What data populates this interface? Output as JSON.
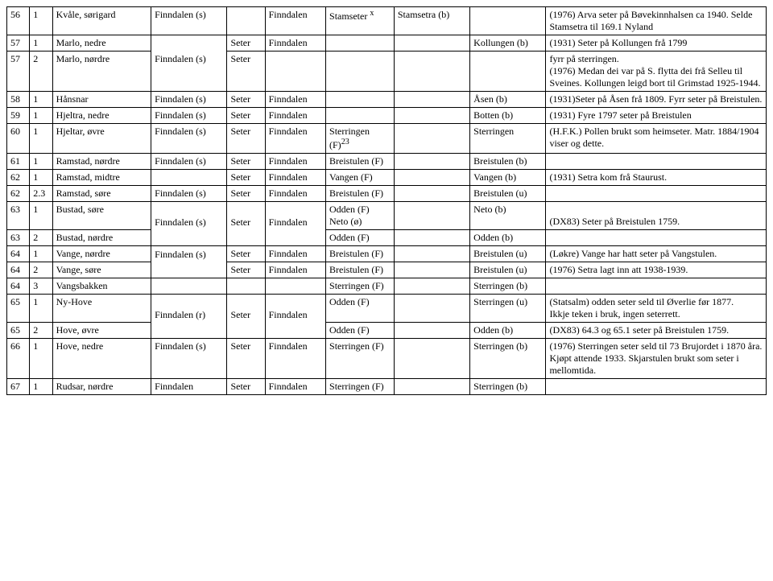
{
  "t": {
    "r56": {
      "a": "56",
      "b": "1",
      "c": "Kvåle, sørigard",
      "d": "Finndalen (s)",
      "f": "Finndalen",
      "g": "Stamsetra (b)",
      "i": "(1976) Arva seter på Bøvekinnhalsen ca 1940. Selde Stamsetra til 169.1 Nyland"
    },
    "stamseter": "Stamseter",
    "stamseter_sup": "x",
    "r57_1": {
      "a": "57",
      "b": "1",
      "c": "Marlo, nedre",
      "e": "Seter",
      "f": "Finndalen",
      "h": "Kollungen (b)",
      "i": "(1931) Seter på Kollungen frå 1799"
    },
    "r57_2": {
      "a": "57",
      "b": "2",
      "c": "Marlo, nørdre",
      "d": "Finndalen (s)",
      "e": "Seter",
      "i": "fyrr på sterringen.\n(1976)  Medan dei var på S. flytta dei frå Selleu til Sveines. Kollungen leigd bort til Grimstad 1925-1944."
    },
    "r58": {
      "a": "58",
      "b": "1",
      "c": "Hånsnar",
      "d": "Finndalen (s)",
      "e": "Seter",
      "f": "Finndalen",
      "h": "Åsen (b)",
      "i": "(1931)Seter på Åsen frå 1809. Fyrr seter på Breistulen."
    },
    "r59": {
      "a": "59",
      "b": "1",
      "c": "Hjeltra, nedre",
      "d": "Finndalen (s)",
      "e": "Seter",
      "f": "Finndalen",
      "h": "Botten (b)",
      "i": "(1931) Fyre 1797 seter på Breistulen"
    },
    "r60": {
      "a": "60",
      "b": "1",
      "c": "Hjeltar, øvre",
      "d": "Finndalen (s)",
      "e": "Seter",
      "f": "Finndalen",
      "h": "Sterringen",
      "i": "(H.F.K.) Pollen brukt som heimseter. Matr. 1884/1904 viser og dette."
    },
    "sterringen_f": "Sterringen (F)",
    "sup23": "23",
    "r61": {
      "a": "61",
      "b": "1",
      "c": "Ramstad, nørdre",
      "d": "Finndalen (s)",
      "e": "Seter",
      "f": "Finndalen",
      "g": "Breistulen (F)",
      "h": "Breistulen (b)"
    },
    "r62_1": {
      "a": "62",
      "b": "1",
      "c": "Ramstad, midtre",
      "e": "Seter",
      "f": "Finndalen",
      "g": "Vangen (F)",
      "h": "Vangen (b)",
      "i": "(1931) Setra kom frå Staurust."
    },
    "r62_2": {
      "a": "62",
      "b": "2.3",
      "c": "Ramstad, søre",
      "d": "Finndalen (s)",
      "e": "Seter",
      "f": "Finndalen",
      "g": "Breistulen (F)",
      "h": "Breistulen (u)"
    },
    "r63_1": {
      "a": "63",
      "b": "1",
      "c": "Bustad, søre",
      "d": "Finndalen (s)",
      "e": "Seter",
      "f": "Finndalen",
      "g": "Odden (F) Neto (ø)",
      "h": "Neto (b)",
      "i": "(DX83) Seter på Breistulen 1759."
    },
    "r63_2": {
      "a": "63",
      "b": "2",
      "c": "Bustad, nørdre",
      "g": "Odden (F)",
      "h": "Odden (b)"
    },
    "r64_1": {
      "a": "64",
      "b": "1",
      "c": "Vange, nørdre",
      "d": "Finndalen (s)",
      "e": "Seter",
      "f": "Finndalen",
      "g": "Breistulen (F)",
      "h": "Breistulen (u)",
      "i": "(Løkre) Vange har hatt seter på Vangstulen."
    },
    "r64_2": {
      "a": "64",
      "b": "2",
      "c": "Vange, søre",
      "e": "Seter",
      "f": "Finndalen",
      "g": "Breistulen (F)",
      "h": "Breistulen (u)",
      "i": "(1976) Setra lagt inn att 1938-1939."
    },
    "r64_3": {
      "a": "64",
      "b": "3",
      "c": "Vangsbakken",
      "g": "Sterringen (F)",
      "h": "Sterringen (b)"
    },
    "r65_1": {
      "a": "65",
      "b": "1",
      "c": "Ny-Hove",
      "d": "Finndalen (r)",
      "e": "Seter",
      "f": "Finndalen",
      "g": "Odden (F)",
      "h": "Sterringen (u)",
      "i": "(Statsalm) odden seter seld til Øverlie før 1877.\nIkkje teken i bruk, ingen seterrett."
    },
    "r65_2": {
      "a": "65",
      "b": "2",
      "c": "Hove, øvre",
      "g": "Odden (F)",
      "h": "Odden (b)",
      "i": "(DX83) 64.3 og 65.1 seter på Breistulen 1759."
    },
    "r66": {
      "a": "66",
      "b": "1",
      "c": "Hove, nedre",
      "d": "Finndalen (s)",
      "e": "Seter",
      "f": "Finndalen",
      "g": "Sterringen (F)",
      "h": "Sterringen (b)",
      "i": "(1976) Sterringen seter seld til 73 Brujordet i 1870 åra. Kjøpt attende 1933. Skjarstulen brukt som seter i mellomtida."
    },
    "r67": {
      "a": "67",
      "b": "1",
      "c": "Rudsar, nørdre",
      "d": "Finndalen",
      "e": "Seter",
      "f": "Finndalen",
      "g": "Sterringen (F)",
      "h": "Sterringen (b)"
    }
  }
}
